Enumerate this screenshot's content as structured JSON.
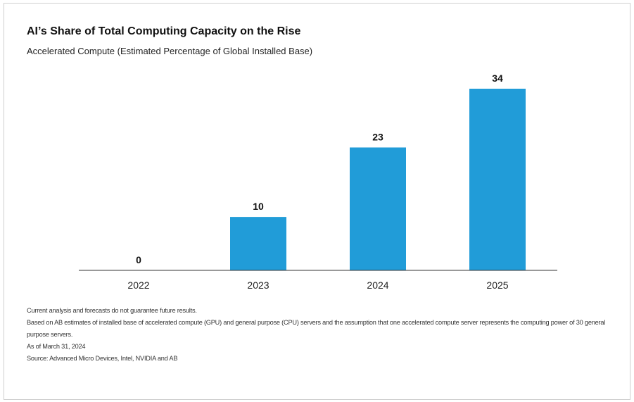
{
  "chart_data": {
    "type": "bar",
    "title": "AI’s Share of Total Computing Capacity on the Rise",
    "subtitle": "Accelerated Compute (Estimated Percentage of Global Installed Base)",
    "categories": [
      "2022",
      "2023",
      "2024",
      "2025"
    ],
    "values": [
      0,
      10,
      23,
      34
    ],
    "xlabel": "",
    "ylabel": "",
    "ylim": [
      0,
      34
    ],
    "grid": false,
    "bar_color": "#219cd8",
    "axis_color": "#333333"
  },
  "notes": [
    "Current analysis and forecasts do not guarantee future results.",
    "Based on AB estimates of installed base of accelerated compute (GPU) and general purpose (CPU) servers and the assumption that one accelerated compute server represents the computing power of 30 general purpose servers.",
    "As of March 31, 2024",
    "Source: Advanced Micro Devices, Intel, NVIDIA and AB"
  ]
}
